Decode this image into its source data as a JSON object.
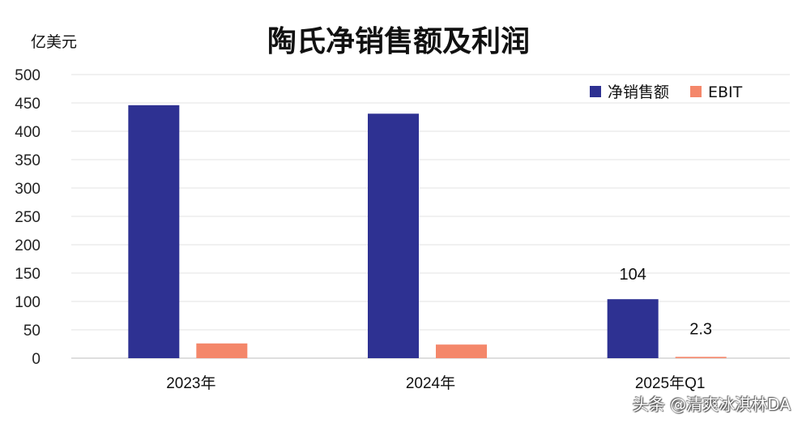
{
  "chart_data": {
    "type": "bar",
    "title": "陶氏净销售额及利润",
    "ylabel": "亿美元",
    "xlabel": "",
    "ylim": [
      0,
      500
    ],
    "yticks": [
      0,
      50,
      100,
      150,
      200,
      250,
      300,
      350,
      400,
      450,
      500
    ],
    "categories": [
      "2023年",
      "2024年",
      "2025年Q1"
    ],
    "series": [
      {
        "name": "净销售额",
        "color": "#2e3192",
        "values": [
          446,
          431,
          104
        ],
        "data_labels": [
          "",
          "",
          "104"
        ]
      },
      {
        "name": "EBIT",
        "color": "#f4876a",
        "values": [
          26,
          24,
          2.3
        ],
        "data_labels": [
          "",
          "",
          "2.3"
        ]
      }
    ],
    "legend_position": "top-right",
    "grid": true
  },
  "watermark": "头条 @清爽冰淇林DA"
}
